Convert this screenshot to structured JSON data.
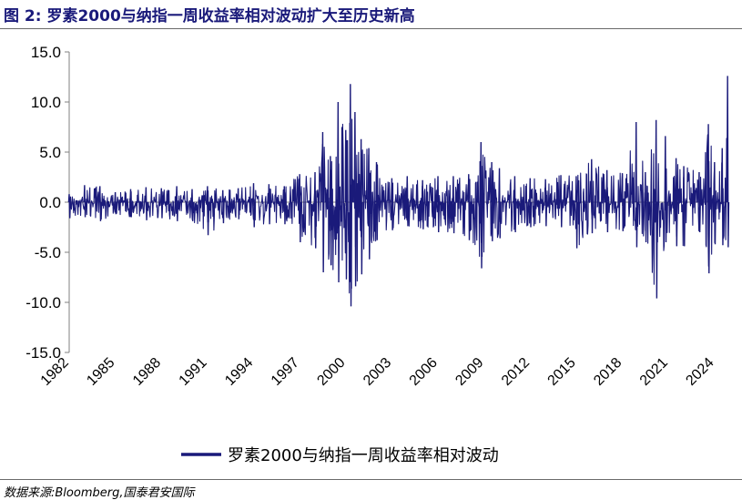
{
  "title": "图 2:  罗素2000与纳指一周收益率相对波动扩大至历史新高",
  "source": "数据来源:Bloomberg,国泰君安国际",
  "colors": {
    "series": "#1a1a7a",
    "title": "#1a1a7a",
    "axis": "#808080"
  },
  "chart_data": {
    "type": "line",
    "ylim": [
      -15,
      15
    ],
    "xlim": [
      1982,
      2024.9
    ],
    "y_ticks": [
      "15.0",
      "10.0",
      "5.0",
      "0.0",
      "-5.0",
      "-10.0",
      "-15.0"
    ],
    "y_tick_values": [
      15,
      10,
      5,
      0,
      -5,
      -10,
      -15
    ],
    "x_ticks": [
      "1982",
      "1985",
      "1988",
      "1991",
      "1994",
      "1997",
      "2000",
      "2003",
      "2006",
      "2009",
      "2012",
      "2015",
      "2018",
      "2021",
      "2024"
    ],
    "x_tick_values": [
      1982,
      1985,
      1988,
      1991,
      1994,
      1997,
      2000,
      2003,
      2006,
      2009,
      2012,
      2015,
      2018,
      2021,
      2024
    ],
    "grid": false,
    "legend_position": "bottom",
    "series": [
      {
        "name": "罗素2000与纳指一周收益率相对波动",
        "x": [
          1982.0,
          1983.0,
          1984.0,
          1985.0,
          1986.0,
          1987.0,
          1988.0,
          1989.0,
          1990.0,
          1991.0,
          1992.0,
          1993.0,
          1994.0,
          1995.0,
          1996.0,
          1997.0,
          1998.0,
          1998.5,
          1999.0,
          1999.5,
          2000.0,
          2000.3,
          2000.6,
          2001.0,
          2001.5,
          2002.0,
          2003.0,
          2004.0,
          2005.0,
          2006.0,
          2007.0,
          2008.0,
          2008.8,
          2009.5,
          2010.0,
          2011.0,
          2012.0,
          2013.0,
          2014.0,
          2015.0,
          2016.0,
          2017.0,
          2018.0,
          2018.9,
          2019.5,
          2020.2,
          2020.8,
          2021.5,
          2022.0,
          2023.0,
          2023.6,
          2024.0,
          2024.5,
          2024.85
        ],
        "high": [
          0.8,
          1.7,
          1.6,
          1.0,
          1.3,
          1.5,
          1.4,
          1.6,
          1.3,
          1.6,
          1.2,
          1.4,
          1.9,
          1.8,
          1.6,
          2.8,
          3.0,
          7.0,
          4.6,
          10.0,
          7.2,
          11.8,
          9.0,
          6.3,
          5.4,
          4.0,
          2.4,
          2.6,
          2.2,
          2.6,
          2.6,
          2.8,
          6.0,
          4.0,
          3.4,
          2.6,
          2.4,
          2.3,
          2.7,
          2.6,
          4.3,
          3.2,
          2.9,
          8.0,
          3.0,
          8.2,
          6.6,
          4.4,
          3.6,
          3.0,
          7.8,
          4.0,
          5.4,
          12.6
        ],
        "low": [
          -1.6,
          -1.5,
          -1.9,
          -1.2,
          -1.5,
          -1.8,
          -1.6,
          -1.9,
          -1.9,
          -3.3,
          -2.1,
          -1.7,
          -2.5,
          -2.2,
          -2.2,
          -4.0,
          -4.6,
          -7.0,
          -6.3,
          -8.0,
          -7.7,
          -10.4,
          -8.4,
          -7.2,
          -5.7,
          -3.8,
          -2.8,
          -2.4,
          -2.7,
          -3.0,
          -3.1,
          -3.8,
          -6.6,
          -3.9,
          -3.6,
          -3.0,
          -2.5,
          -2.4,
          -2.5,
          -4.6,
          -3.1,
          -3.0,
          -2.9,
          -4.5,
          -4.0,
          -9.6,
          -4.0,
          -4.4,
          -4.4,
          -3.0,
          -7.1,
          -4.2,
          -4.3,
          -4.5
        ]
      }
    ]
  }
}
